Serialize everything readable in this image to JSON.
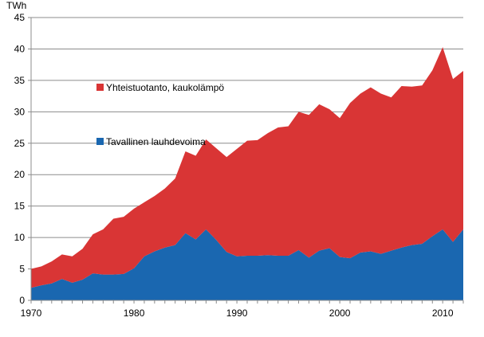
{
  "chart_data": {
    "type": "area",
    "stacked": true,
    "ylabel": "TWh",
    "ylim": [
      0,
      45
    ],
    "yticks": [
      "0",
      "5",
      "10",
      "15",
      "20",
      "25",
      "30",
      "35",
      "40",
      "45"
    ],
    "xlim": [
      1970,
      2012
    ],
    "xticks": [
      "1970",
      "1980",
      "1990",
      "2000",
      "2010"
    ],
    "grid": "horizontal",
    "legend_placement": "inside-left",
    "x": [
      1970,
      1971,
      1972,
      1973,
      1974,
      1975,
      1976,
      1977,
      1978,
      1979,
      1980,
      1981,
      1982,
      1983,
      1984,
      1985,
      1986,
      1987,
      1988,
      1989,
      1990,
      1991,
      1992,
      1993,
      1994,
      1995,
      1996,
      1997,
      1998,
      1999,
      2000,
      2001,
      2002,
      2003,
      2004,
      2005,
      2006,
      2007,
      2008,
      2009,
      2010,
      2011,
      2012
    ],
    "series": [
      {
        "name": "Tavallinen lauhdevoima",
        "color": "#1a67b0",
        "values": [
          2.0,
          2.4,
          2.7,
          3.4,
          2.8,
          3.3,
          4.3,
          4.1,
          4.1,
          4.2,
          5.1,
          7.0,
          7.8,
          8.4,
          8.8,
          10.7,
          9.7,
          11.3,
          9.6,
          7.7,
          7.0,
          7.1,
          7.1,
          7.2,
          7.1,
          7.1,
          8.0,
          6.8,
          7.9,
          8.3,
          6.9,
          6.7,
          7.6,
          7.8,
          7.4,
          7.9,
          8.4,
          8.8,
          9.0,
          10.2,
          11.3,
          9.3,
          11.3
        ]
      },
      {
        "name": "Yhteistuotanto, kaukolämpö",
        "color": "#d93535",
        "values": [
          3.0,
          3.0,
          3.5,
          3.9,
          4.2,
          4.9,
          6.2,
          7.2,
          8.9,
          9.1,
          9.5,
          8.6,
          8.8,
          9.4,
          10.6,
          13.0,
          13.3,
          14.3,
          14.6,
          15.1,
          17.1,
          18.3,
          18.4,
          19.4,
          20.4,
          20.6,
          22.0,
          22.7,
          23.3,
          22.1,
          22.1,
          24.7,
          25.3,
          26.1,
          25.5,
          24.4,
          25.7,
          25.2,
          25.2,
          26.4,
          29.0,
          25.9,
          25.2
        ]
      }
    ]
  }
}
